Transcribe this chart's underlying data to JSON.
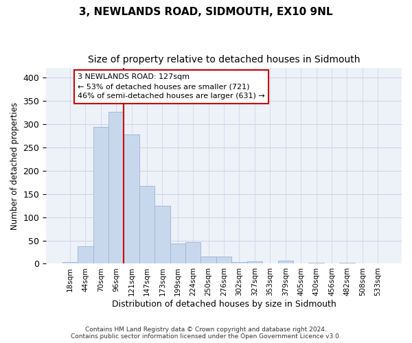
{
  "title": "3, NEWLANDS ROAD, SIDMOUTH, EX10 9NL",
  "subtitle": "Size of property relative to detached houses in Sidmouth",
  "xlabel": "Distribution of detached houses by size in Sidmouth",
  "ylabel": "Number of detached properties",
  "bar_labels": [
    "18sqm",
    "44sqm",
    "70sqm",
    "96sqm",
    "121sqm",
    "147sqm",
    "173sqm",
    "199sqm",
    "224sqm",
    "250sqm",
    "276sqm",
    "302sqm",
    "327sqm",
    "353sqm",
    "379sqm",
    "405sqm",
    "430sqm",
    "456sqm",
    "482sqm",
    "508sqm",
    "533sqm"
  ],
  "bar_values": [
    3,
    37,
    294,
    326,
    278,
    167,
    124,
    44,
    46,
    16,
    16,
    4,
    5,
    0,
    6,
    0,
    2,
    0,
    2,
    0,
    0
  ],
  "bar_color": "#c8d8ec",
  "bar_edgecolor": "#9ab4d4",
  "vline_x_index": 4,
  "vline_color": "#cc0000",
  "annotation_text": "3 NEWLANDS ROAD: 127sqm\n← 53% of detached houses are smaller (721)\n46% of semi-detached houses are larger (631) →",
  "ylim": [
    0,
    420
  ],
  "yticks": [
    0,
    50,
    100,
    150,
    200,
    250,
    300,
    350,
    400
  ],
  "grid_color": "#c8d2e8",
  "bg_color": "#edf1f8",
  "footer": "Contains HM Land Registry data © Crown copyright and database right 2024.\nContains public sector information licensed under the Open Government Licence v3.0.",
  "title_fontsize": 11,
  "subtitle_fontsize": 10,
  "xlabel_fontsize": 9,
  "ylabel_fontsize": 8.5,
  "annot_fontsize": 8,
  "tick_fontsize": 7.5
}
